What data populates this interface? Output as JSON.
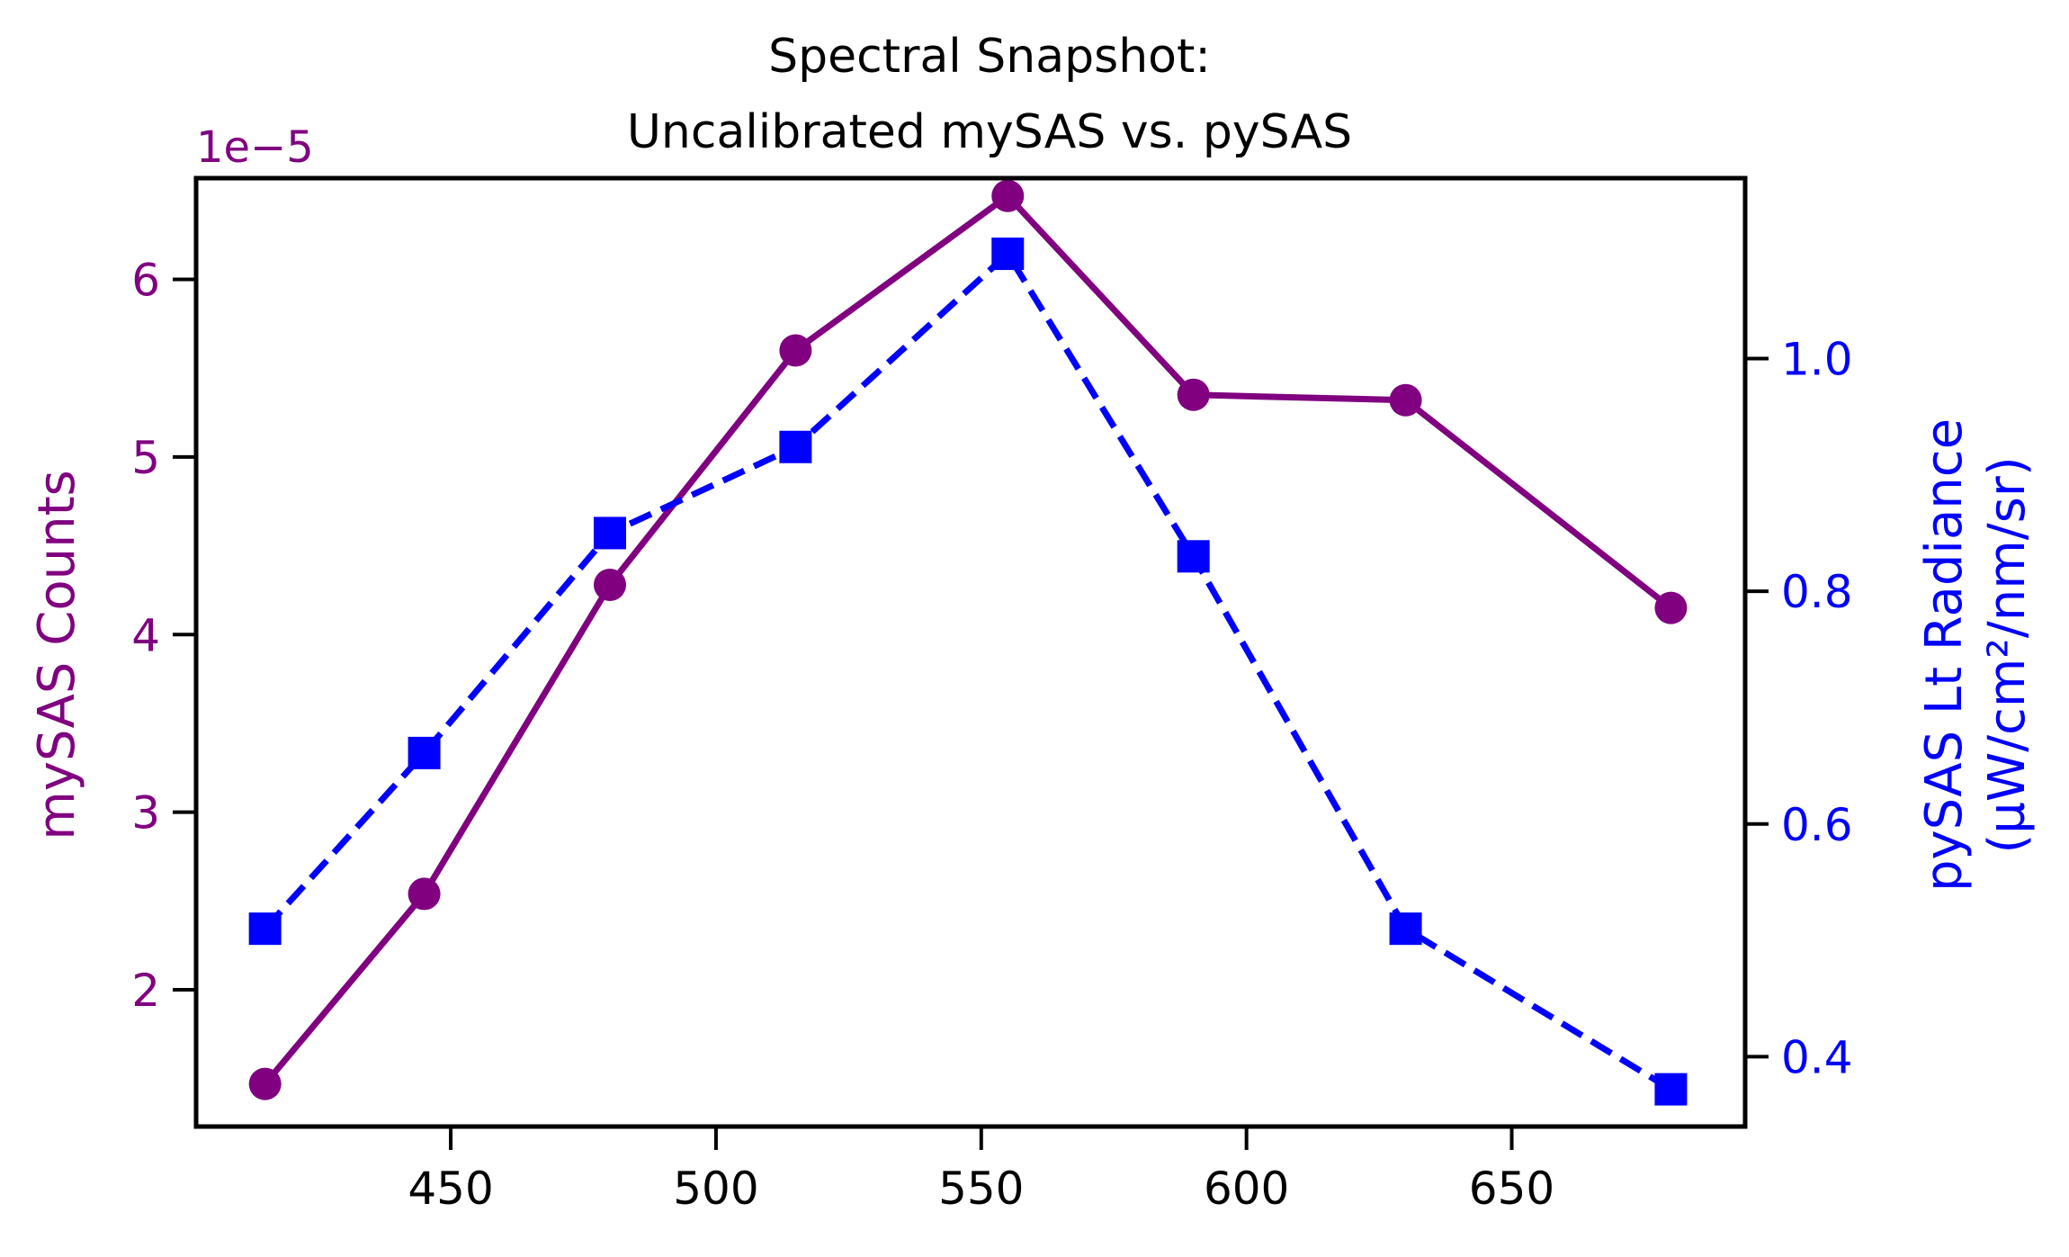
{
  "chart_data": {
    "type": "line",
    "title_lines": [
      "Spectral Snapshot:",
      "Uncalibrated mySAS vs. pySAS"
    ],
    "x": [
      415,
      445,
      480,
      515,
      555,
      590,
      630,
      680
    ],
    "xlim": [
      402,
      694
    ],
    "xticks": [
      450,
      500,
      550,
      600,
      650
    ],
    "grid": false,
    "colors": {
      "left": "#800080",
      "right": "#0000ff",
      "axes": "#000000"
    },
    "left_axis": {
      "label": "mySAS Counts",
      "offset_text": "1e−5",
      "ylim": [
        1.23,
        6.57
      ],
      "ticks": [
        2,
        3,
        4,
        5,
        6
      ]
    },
    "right_axis": {
      "label_line1": "pySAS Lt Radiance",
      "label_line2": "(µW/cm²/nm/sr)",
      "ylim": [
        0.34,
        1.155
      ],
      "ticks": [
        0.4,
        0.6,
        0.8,
        1.0
      ],
      "tick_labels": [
        "0.4",
        "0.6",
        "0.8",
        "1.0"
      ]
    },
    "series": [
      {
        "axis": "left",
        "values": [
          1.47,
          2.54,
          4.28,
          5.6,
          6.47,
          5.35,
          5.32,
          4.15
        ],
        "marker": "circle",
        "line": "solid",
        "color": "#800080"
      },
      {
        "axis": "right",
        "values": [
          0.51,
          0.661,
          0.85,
          0.924,
          1.09,
          0.83,
          0.51,
          0.372
        ],
        "marker": "square",
        "line": "dashed",
        "color": "#0000ff"
      }
    ]
  }
}
